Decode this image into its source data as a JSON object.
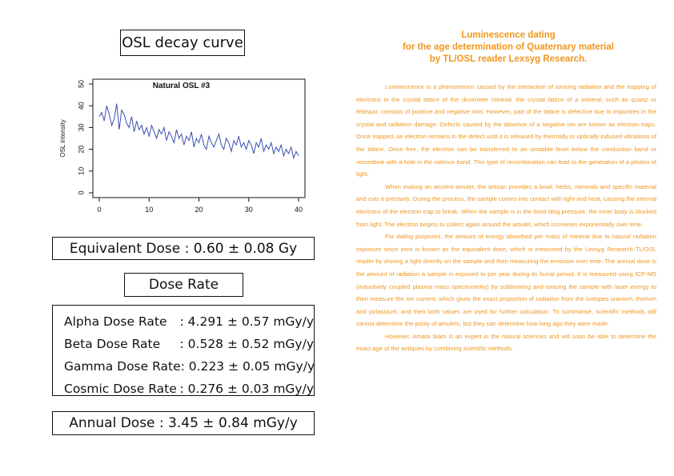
{
  "left": {
    "title_box": "OSL decay curve",
    "equivalent_dose": "Equivalent Dose : 0.60 ± 0.08 Gy",
    "dose_rate_title": "Dose Rate",
    "dose_rates": [
      {
        "label": "Alpha Dose Rate",
        "value": ": 4.291 ± 0.57 mGy/y"
      },
      {
        "label": "Beta Dose Rate",
        "value": ": 0.528 ± 0.52 mGy/y"
      },
      {
        "label": "Gamma Dose Rate",
        "value": ": 0.223 ± 0.05 mGy/y"
      },
      {
        "label": "Cosmic Dose Rate",
        "value": ": 0.276 ± 0.03 mGy/y"
      }
    ],
    "annual_dose": "Annual Dose : 3.45 ± 0.84 mGy/y"
  },
  "chart_data": {
    "type": "line",
    "title": "Natural OSL #3",
    "xlabel": "",
    "ylabel": "OSL intensity",
    "xlim": [
      0,
      40
    ],
    "ylim": [
      0,
      50
    ],
    "xticks": [
      0,
      10,
      20,
      30,
      40
    ],
    "yticks": [
      0,
      10,
      20,
      30,
      40,
      50
    ],
    "grid": false,
    "color": "#3b4fb0",
    "series": [
      {
        "x": [
          0,
          0.5,
          1,
          1.5,
          2,
          2.5,
          3,
          3.5,
          4,
          4.5,
          5,
          5.5,
          6,
          6.5,
          7,
          7.5,
          8,
          8.5,
          9,
          9.5,
          10,
          10.5,
          11,
          11.5,
          12,
          12.5,
          13,
          13.5,
          14,
          14.5,
          15,
          15.5,
          16,
          16.5,
          17,
          17.5,
          18,
          18.5,
          19,
          19.5,
          20,
          20.5,
          21,
          21.5,
          22,
          22.5,
          23,
          23.5,
          24,
          24.5,
          25,
          25.5,
          26,
          26.5,
          27,
          27.5,
          28,
          28.5,
          29,
          29.5,
          30,
          30.5,
          31,
          31.5,
          32,
          32.5,
          33,
          33.5,
          34,
          34.5,
          35,
          35.5,
          36,
          36.5,
          37,
          37.5,
          38,
          38.5,
          39,
          39.5,
          40
        ],
        "y": [
          35,
          37,
          33,
          40,
          36,
          31,
          34,
          41,
          29,
          38,
          36,
          32,
          30,
          35,
          28,
          33,
          29,
          31,
          27,
          30,
          26,
          31,
          28,
          25,
          29,
          27,
          30,
          24,
          28,
          26,
          23,
          29,
          25,
          27,
          22,
          26,
          24,
          28,
          21,
          25,
          23,
          27,
          22,
          20,
          26,
          23,
          21,
          24,
          27,
          22,
          20,
          25,
          23,
          19,
          24,
          22,
          26,
          21,
          23,
          20,
          24,
          22,
          18,
          23,
          21,
          25,
          19,
          22,
          20,
          23,
          18,
          21,
          19,
          22,
          17,
          20,
          18,
          21,
          16,
          19,
          17
        ]
      }
    ]
  },
  "right": {
    "title_lines": [
      "Luminescence dating",
      "for the age determination of Quaternary material",
      "by TL/OSL reader Lexsyg Research."
    ],
    "paragraphs": [
      "Luminescence is a phenomenon caused by the interaction of ionising radiation and the trapping of electrons in the crystal lattice of the dosimeter mineral. the crystal lattice of a mineral, such as quartz or feldspar, consists of positive and negative ions. However, part of the lattice is defective due to impurities in the crystal and radiation damage. Defects caused by the absence of a negative ion are known as electron traps. Once trapped, an electron remains in the defect until it is released by thermally or optically induced vibrations of the lattice. Once free, the electron can be transferred to an unstable level below the conduction band or recombine with a hole in the valence band. This type of recombination can lead to the generation of a photon of light.",
      "When making an ancient amulet, the artisan provides a bowl, herbs, minerals and specific material and cuts it precisely. During the process, the sample comes into contact with light and heat, causing the internal electrons of the electron trap to break. When the sample is in the fixed blog pressure, the inner body is blocked from light. The electron begins to collect again around the amulet, which increases exponentially over time.",
      "For dating purposes, the amount of energy absorbed per mass of mineral due to natural radiation exposure since zero is known as the equivalent dose, which is measured by the Lexsyg Research TL/OSL reader by shining a light directly on the sample and then measuring the emission over time. The annual dose is the amount of radiation a sample is exposed to per year during its burial period. It is measured using ICP-MS (inductively coupled plasma mass spectrometry) by sublimating and ionizing the sample with laser energy to then measure the ion current, which gives the exact proportion of radiation from the isotopes uranium, thorium and potassium, and then both values are used for further calculation. To summarise, scientific methods still cannot determine the purity of amulets, but they can determine how long ago they were made.",
      "However, Amata Siam is an expert in the natural sciences and will soon be able to determine the exact age of the antiques by combining scientific methods."
    ]
  }
}
